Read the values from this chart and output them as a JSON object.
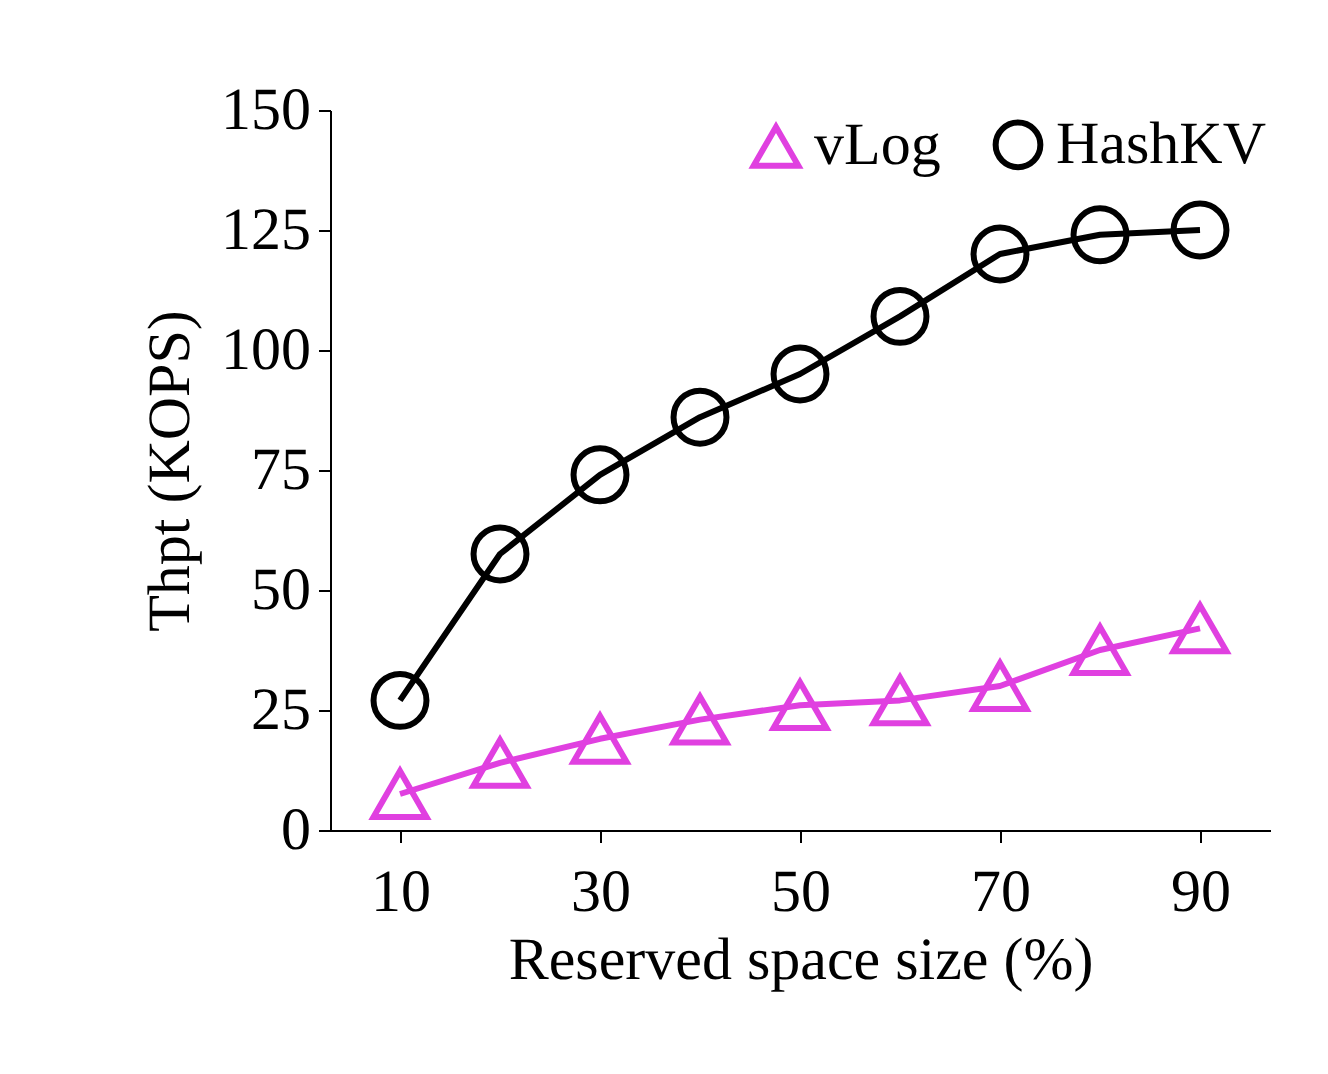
{
  "chart_data": {
    "type": "line",
    "xlabel": "Reserved space size (%)",
    "ylabel": "Thpt (KOPS)",
    "x": [
      10,
      20,
      30,
      40,
      50,
      60,
      70,
      80,
      90
    ],
    "series": [
      {
        "name": "vLog",
        "color": "#e040e0",
        "marker": "triangle",
        "values": [
          7.5,
          14,
          19,
          23,
          26,
          27,
          30,
          37.5,
          42
        ]
      },
      {
        "name": "HashKV",
        "color": "#000000",
        "marker": "circle",
        "values": [
          27,
          57.5,
          74,
          86,
          95,
          107,
          120,
          124,
          125
        ]
      }
    ],
    "xlim": [
      3,
      97
    ],
    "xticks": [
      10,
      30,
      50,
      70,
      90
    ],
    "ylim": [
      0,
      150
    ],
    "yticks": [
      0,
      25,
      50,
      75,
      100,
      125,
      150
    ],
    "grid": false,
    "legend": "top"
  }
}
